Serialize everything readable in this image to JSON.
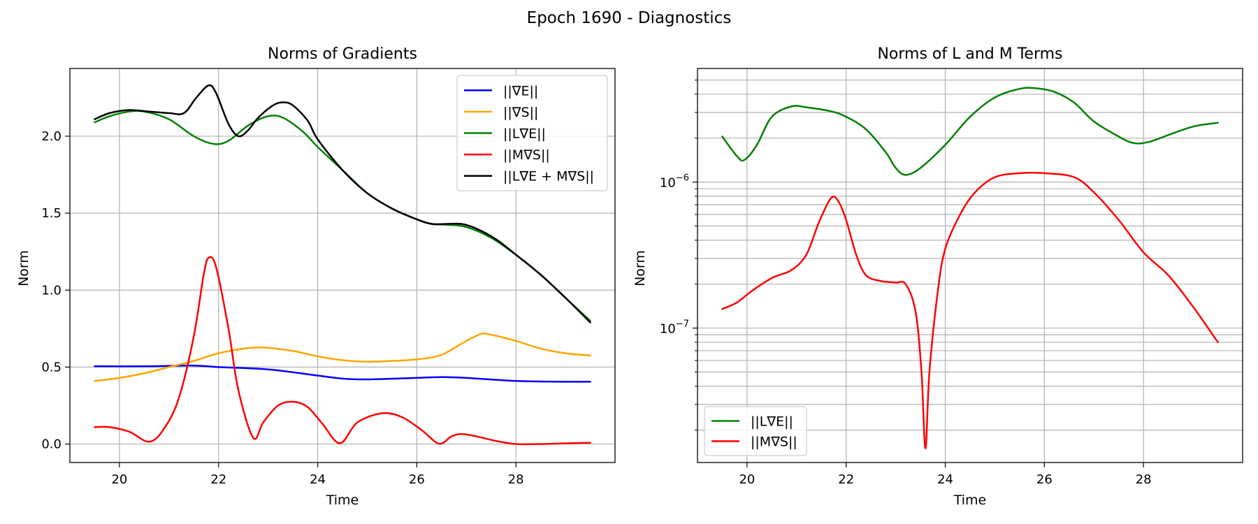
{
  "figure": {
    "title": "Epoch 1690 - Diagnostics",
    "colors": {
      "grid": "#b0b0b0",
      "axes": "#000000",
      "legend_border": "#cccccc"
    }
  },
  "chart_data": [
    {
      "type": "line",
      "title": "Norms of Gradients",
      "xlabel": "Time",
      "ylabel": "Norm",
      "xlim": [
        19.0,
        30.0
      ],
      "ylim": [
        -0.12,
        2.44
      ],
      "xticks": [
        20,
        22,
        24,
        26,
        28
      ],
      "xtick_labels": [
        "20",
        "22",
        "24",
        "26",
        "28"
      ],
      "yticks": [
        0.0,
        0.5,
        1.0,
        1.5,
        2.0
      ],
      "ytick_labels": [
        "0.0",
        "0.5",
        "1.0",
        "1.5",
        "2.0"
      ],
      "grid": true,
      "legend_position": "top-right",
      "series": [
        {
          "name": "||∇E||",
          "color": "#0000ff",
          "points": [
            [
              19.5,
              0.505
            ],
            [
              20.5,
              0.505
            ],
            [
              21.5,
              0.51
            ],
            [
              22.0,
              0.5
            ],
            [
              23.0,
              0.485
            ],
            [
              24.0,
              0.445
            ],
            [
              24.5,
              0.425
            ],
            [
              25.0,
              0.42
            ],
            [
              26.0,
              0.43
            ],
            [
              26.5,
              0.435
            ],
            [
              27.0,
              0.43
            ],
            [
              28.0,
              0.41
            ],
            [
              29.0,
              0.405
            ],
            [
              29.5,
              0.405
            ]
          ]
        },
        {
          "name": "||∇S||",
          "color": "#ffa500",
          "points": [
            [
              19.5,
              0.41
            ],
            [
              20.0,
              0.43
            ],
            [
              20.5,
              0.46
            ],
            [
              21.0,
              0.5
            ],
            [
              21.5,
              0.54
            ],
            [
              22.0,
              0.59
            ],
            [
              22.5,
              0.62
            ],
            [
              22.75,
              0.627
            ],
            [
              23.0,
              0.625
            ],
            [
              23.5,
              0.605
            ],
            [
              24.0,
              0.57
            ],
            [
              24.5,
              0.545
            ],
            [
              25.0,
              0.535
            ],
            [
              25.5,
              0.54
            ],
            [
              26.0,
              0.55
            ],
            [
              26.5,
              0.58
            ],
            [
              27.0,
              0.67
            ],
            [
              27.3,
              0.715
            ],
            [
              27.5,
              0.71
            ],
            [
              28.0,
              0.67
            ],
            [
              28.5,
              0.62
            ],
            [
              29.0,
              0.59
            ],
            [
              29.5,
              0.575
            ]
          ]
        },
        {
          "name": "||L∇E||",
          "color": "#008000",
          "points": [
            [
              19.5,
              2.09
            ],
            [
              19.8,
              2.13
            ],
            [
              20.2,
              2.16
            ],
            [
              20.5,
              2.16
            ],
            [
              21.0,
              2.11
            ],
            [
              21.5,
              2.0
            ],
            [
              21.9,
              1.95
            ],
            [
              22.2,
              1.97
            ],
            [
              22.6,
              2.07
            ],
            [
              23.0,
              2.13
            ],
            [
              23.3,
              2.12
            ],
            [
              23.7,
              2.03
            ],
            [
              24.0,
              1.93
            ],
            [
              24.5,
              1.78
            ],
            [
              25.0,
              1.63
            ],
            [
              25.5,
              1.53
            ],
            [
              26.0,
              1.46
            ],
            [
              26.3,
              1.43
            ],
            [
              26.6,
              1.425
            ],
            [
              27.0,
              1.41
            ],
            [
              27.5,
              1.34
            ],
            [
              28.0,
              1.23
            ],
            [
              28.5,
              1.1
            ],
            [
              29.0,
              0.95
            ],
            [
              29.5,
              0.8
            ]
          ]
        },
        {
          "name": "||M∇S||",
          "color": "#ff0000",
          "points": [
            [
              19.5,
              0.11
            ],
            [
              19.8,
              0.11
            ],
            [
              20.2,
              0.08
            ],
            [
              20.6,
              0.015
            ],
            [
              20.9,
              0.1
            ],
            [
              21.2,
              0.3
            ],
            [
              21.5,
              0.7
            ],
            [
              21.7,
              1.1
            ],
            [
              21.8,
              1.21
            ],
            [
              21.95,
              1.15
            ],
            [
              22.2,
              0.75
            ],
            [
              22.4,
              0.35
            ],
            [
              22.7,
              0.04
            ],
            [
              22.9,
              0.14
            ],
            [
              23.2,
              0.25
            ],
            [
              23.5,
              0.275
            ],
            [
              23.8,
              0.24
            ],
            [
              24.1,
              0.13
            ],
            [
              24.45,
              0.005
            ],
            [
              24.8,
              0.14
            ],
            [
              25.3,
              0.2
            ],
            [
              25.7,
              0.175
            ],
            [
              26.1,
              0.09
            ],
            [
              26.45,
              0.002
            ],
            [
              26.7,
              0.05
            ],
            [
              26.9,
              0.065
            ],
            [
              27.2,
              0.05
            ],
            [
              27.6,
              0.02
            ],
            [
              28.0,
              0.0
            ],
            [
              28.5,
              0.0
            ],
            [
              29.0,
              0.005
            ],
            [
              29.5,
              0.008
            ]
          ]
        },
        {
          "name": "||L∇E + M∇S||",
          "color": "#000000",
          "points": [
            [
              19.5,
              2.11
            ],
            [
              19.8,
              2.15
            ],
            [
              20.2,
              2.17
            ],
            [
              20.6,
              2.16
            ],
            [
              21.0,
              2.15
            ],
            [
              21.3,
              2.15
            ],
            [
              21.55,
              2.25
            ],
            [
              21.8,
              2.33
            ],
            [
              21.95,
              2.28
            ],
            [
              22.2,
              2.08
            ],
            [
              22.4,
              2.0
            ],
            [
              22.6,
              2.04
            ],
            [
              22.8,
              2.12
            ],
            [
              23.1,
              2.2
            ],
            [
              23.3,
              2.22
            ],
            [
              23.5,
              2.2
            ],
            [
              23.8,
              2.1
            ],
            [
              24.0,
              1.98
            ],
            [
              24.5,
              1.78
            ],
            [
              25.0,
              1.63
            ],
            [
              25.5,
              1.53
            ],
            [
              26.0,
              1.46
            ],
            [
              26.3,
              1.43
            ],
            [
              26.6,
              1.43
            ],
            [
              26.9,
              1.43
            ],
            [
              27.2,
              1.4
            ],
            [
              27.6,
              1.33
            ],
            [
              28.0,
              1.23
            ],
            [
              28.5,
              1.1
            ],
            [
              29.0,
              0.95
            ],
            [
              29.5,
              0.79
            ]
          ]
        }
      ]
    },
    {
      "type": "line",
      "title": "Norms of L and M Terms",
      "xlabel": "Time",
      "ylabel": "Norm",
      "xlim": [
        19.0,
        30.0
      ],
      "ylim": [
        1.2e-08,
        6e-06
      ],
      "yscale": "log",
      "xticks": [
        20,
        22,
        24,
        26,
        28
      ],
      "xtick_labels": [
        "20",
        "22",
        "24",
        "26",
        "28"
      ],
      "yticks_major": [
        1e-07,
        1e-06
      ],
      "ytick_labels": [
        {
          "base": "10",
          "exp": "−7"
        },
        {
          "base": "10",
          "exp": "−6"
        }
      ],
      "grid": true,
      "minor_grid": true,
      "legend_position": "bottom-left",
      "series": [
        {
          "name": "||L∇E||",
          "color": "#008000",
          "points": [
            [
              19.5,
              2.05e-06
            ],
            [
              19.8,
              1.5e-06
            ],
            [
              19.95,
              1.42e-06
            ],
            [
              20.2,
              1.8e-06
            ],
            [
              20.5,
              2.8e-06
            ],
            [
              20.9,
              3.3e-06
            ],
            [
              21.2,
              3.25e-06
            ],
            [
              21.7,
              3.05e-06
            ],
            [
              22.0,
              2.8e-06
            ],
            [
              22.4,
              2.3e-06
            ],
            [
              22.8,
              1.6e-06
            ],
            [
              23.0,
              1.25e-06
            ],
            [
              23.2,
              1.12e-06
            ],
            [
              23.5,
              1.25e-06
            ],
            [
              24.0,
              1.8e-06
            ],
            [
              24.5,
              2.8e-06
            ],
            [
              25.0,
              3.8e-06
            ],
            [
              25.5,
              4.35e-06
            ],
            [
              25.8,
              4.4e-06
            ],
            [
              26.2,
              4.15e-06
            ],
            [
              26.6,
              3.5e-06
            ],
            [
              27.0,
              2.6e-06
            ],
            [
              27.5,
              2.05e-06
            ],
            [
              27.8,
              1.85e-06
            ],
            [
              28.1,
              1.88e-06
            ],
            [
              28.5,
              2.1e-06
            ],
            [
              29.0,
              2.4e-06
            ],
            [
              29.5,
              2.55e-06
            ]
          ]
        },
        {
          "name": "||M∇S||",
          "color": "#ff0000",
          "points": [
            [
              19.5,
              1.35e-07
            ],
            [
              19.8,
              1.5e-07
            ],
            [
              20.1,
              1.8e-07
            ],
            [
              20.5,
              2.2e-07
            ],
            [
              20.9,
              2.5e-07
            ],
            [
              21.2,
              3.2e-07
            ],
            [
              21.45,
              5.3e-07
            ],
            [
              21.7,
              7.8e-07
            ],
            [
              21.85,
              7.3e-07
            ],
            [
              22.0,
              5.5e-07
            ],
            [
              22.2,
              3.2e-07
            ],
            [
              22.4,
              2.3e-07
            ],
            [
              22.7,
              2.1e-07
            ],
            [
              23.0,
              2.05e-07
            ],
            [
              23.2,
              2e-07
            ],
            [
              23.4,
              1.3e-07
            ],
            [
              23.52,
              5e-08
            ],
            [
              23.6,
              1.5e-08
            ],
            [
              23.68,
              5e-08
            ],
            [
              23.85,
              1.8e-07
            ],
            [
              24.0,
              3.5e-07
            ],
            [
              24.3,
              6e-07
            ],
            [
              24.6,
              8.5e-07
            ],
            [
              25.0,
              1.08e-06
            ],
            [
              25.5,
              1.15e-06
            ],
            [
              26.0,
              1.15e-06
            ],
            [
              26.6,
              1.08e-06
            ],
            [
              27.0,
              8.5e-07
            ],
            [
              27.5,
              5.5e-07
            ],
            [
              28.0,
              3.3e-07
            ],
            [
              28.5,
              2.3e-07
            ],
            [
              29.0,
              1.4e-07
            ],
            [
              29.5,
              8e-08
            ]
          ]
        }
      ]
    }
  ]
}
